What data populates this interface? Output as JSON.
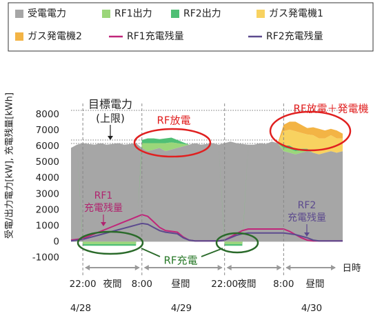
{
  "chart_data": {
    "type": "area",
    "y_label": "受電/出力電力[kW], 充電残量[kWh]",
    "x": [
      0,
      1,
      2,
      3,
      4,
      5,
      6,
      7,
      8,
      9,
      10,
      11,
      12,
      13,
      14,
      15,
      16,
      17,
      18,
      19,
      20,
      21,
      22,
      23,
      24,
      25,
      26,
      27,
      28,
      29,
      30,
      31,
      32,
      33,
      34,
      35,
      36,
      37,
      38,
      39,
      40,
      41,
      42,
      43,
      44,
      45,
      46
    ],
    "xlim": [
      0,
      46
    ],
    "xticks": [
      {
        "value": 2,
        "label": "22:00"
      },
      {
        "value": 12,
        "label": "8:00"
      },
      {
        "value": 26,
        "label": "22:00"
      },
      {
        "value": 36,
        "label": "8:00"
      }
    ],
    "ylim": [
      -1500,
      9000
    ],
    "yticks": [
      -1000,
      0,
      1000,
      2000,
      3000,
      4000,
      5000,
      6000,
      7000,
      8000
    ],
    "series": [
      {
        "name": "受電電力",
        "color": "#a6a6a6",
        "values": [
          5900,
          6100,
          6200,
          6150,
          6100,
          6200,
          6100,
          6150,
          6200,
          6100,
          6150,
          6200,
          5900,
          5700,
          5800,
          5900,
          5700,
          5800,
          5900,
          6000,
          6100,
          6200,
          6100,
          6150,
          6200,
          6100,
          6200,
          6300,
          6200,
          6150,
          6100,
          6100,
          6200,
          6150,
          6300,
          6200,
          5700,
          5600,
          5500,
          5600,
          5700,
          5600,
          5500,
          5600,
          5700,
          5600,
          5700
        ]
      },
      {
        "name": "RF1出力",
        "color": "#9bd67a",
        "values": [
          0,
          0,
          -150,
          -150,
          -150,
          -150,
          -150,
          -150,
          -150,
          -150,
          -150,
          -150,
          300,
          500,
          400,
          300,
          500,
          450,
          300,
          150,
          0,
          0,
          0,
          0,
          0,
          0,
          -150,
          -150,
          -150,
          -150,
          0,
          0,
          0,
          0,
          0,
          0,
          200,
          250,
          200,
          150,
          100,
          0,
          0,
          0,
          0,
          0,
          0
        ]
      },
      {
        "name": "RF2出力",
        "color": "#4fbf75",
        "values": [
          0,
          0,
          -100,
          -100,
          -100,
          -100,
          -100,
          -100,
          -100,
          -100,
          -100,
          -100,
          200,
          300,
          300,
          250,
          300,
          300,
          200,
          100,
          0,
          0,
          0,
          0,
          0,
          0,
          -100,
          -100,
          -100,
          -100,
          0,
          0,
          0,
          0,
          0,
          0,
          150,
          200,
          150,
          100,
          50,
          0,
          0,
          0,
          0,
          0,
          0
        ]
      },
      {
        "name": "ガス発電機1",
        "color": "#f8d260",
        "values": [
          0,
          0,
          0,
          0,
          0,
          0,
          0,
          0,
          0,
          0,
          0,
          0,
          0,
          0,
          0,
          0,
          0,
          0,
          0,
          0,
          0,
          0,
          0,
          0,
          0,
          0,
          0,
          0,
          0,
          0,
          0,
          0,
          0,
          0,
          0,
          0,
          900,
          1000,
          1100,
          1000,
          900,
          1100,
          1000,
          900,
          1000,
          900,
          800
        ]
      },
      {
        "name": "ガス発電機2",
        "color": "#f3b445",
        "values": [
          0,
          0,
          0,
          0,
          0,
          0,
          0,
          0,
          0,
          0,
          0,
          0,
          0,
          0,
          0,
          0,
          0,
          0,
          0,
          0,
          0,
          0,
          0,
          0,
          0,
          0,
          0,
          0,
          0,
          0,
          0,
          0,
          0,
          0,
          0,
          0,
          400,
          500,
          600,
          500,
          400,
          500,
          600,
          500,
          400,
          500,
          300
        ]
      },
      {
        "name": "RF1充電残量",
        "type": "line",
        "color": "#c0257a",
        "values": [
          100,
          150,
          200,
          350,
          500,
          650,
          800,
          950,
          1100,
          1250,
          1400,
          1550,
          1700,
          1600,
          1250,
          900,
          700,
          650,
          600,
          300,
          100,
          50,
          50,
          50,
          50,
          50,
          100,
          300,
          500,
          700,
          800,
          800,
          800,
          800,
          800,
          800,
          800,
          650,
          450,
          250,
          100,
          50,
          50,
          50,
          50,
          50,
          50
        ]
      },
      {
        "name": "RF2充電残量",
        "type": "line",
        "color": "#5c4a8e",
        "values": [
          50,
          100,
          150,
          250,
          350,
          450,
          550,
          650,
          750,
          850,
          950,
          1050,
          1150,
          1100,
          900,
          700,
          600,
          550,
          500,
          250,
          100,
          50,
          50,
          50,
          50,
          50,
          100,
          250,
          400,
          500,
          550,
          550,
          550,
          550,
          550,
          550,
          550,
          500,
          450,
          350,
          250,
          100,
          50,
          50,
          50,
          50,
          50
        ]
      }
    ],
    "annotations": [
      "目標電力",
      "(上限)",
      "RF放電",
      "RF放電＋発電機",
      "RF1",
      "充電残量",
      "RF2",
      "充電残量",
      "RF充電",
      "夜間",
      "昼間",
      "夜間",
      "昼間",
      "4/28",
      "4/29",
      "4/30",
      "日時"
    ]
  }
}
